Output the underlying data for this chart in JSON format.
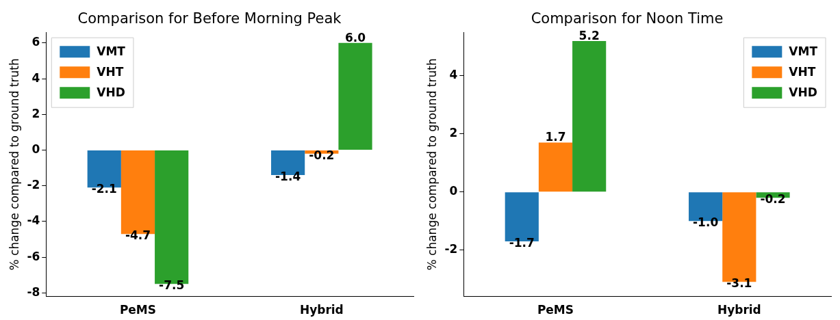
{
  "chart_data": [
    {
      "type": "bar",
      "title": "Comparison for Before Morning Peak",
      "ylabel": "% change compared to ground truth",
      "categories": [
        "PeMS",
        "Hybrid"
      ],
      "series": [
        {
          "name": "VMT",
          "color": "#1f77b4",
          "values": [
            -2.1,
            -1.4
          ],
          "value_labels": [
            "-2.1",
            "-1.4"
          ]
        },
        {
          "name": "VHT",
          "color": "#ff7f0e",
          "values": [
            -4.7,
            -0.2
          ],
          "value_labels": [
            "-4.7",
            "-0.2"
          ]
        },
        {
          "name": "VHD",
          "color": "#2ca02c",
          "values": [
            -7.5,
            6.0
          ],
          "value_labels": [
            "-7.5",
            "6.0"
          ]
        }
      ],
      "ylim": [
        -8.2,
        6.6
      ],
      "yticks": [
        -8,
        -6,
        -4,
        -2,
        0,
        2,
        4,
        6
      ],
      "legend": "top left",
      "grid": false
    },
    {
      "type": "bar",
      "title": "Comparison for Noon Time",
      "ylabel": "% change compared to ground truth",
      "categories": [
        "PeMS",
        "Hybrid"
      ],
      "series": [
        {
          "name": "VMT",
          "color": "#1f77b4",
          "values": [
            -1.7,
            -1.0
          ],
          "value_labels": [
            "-1.7",
            "-1.0"
          ]
        },
        {
          "name": "VHT",
          "color": "#ff7f0e",
          "values": [
            1.7,
            -3.1
          ],
          "value_labels": [
            "1.7",
            "-3.1"
          ]
        },
        {
          "name": "VHD",
          "color": "#2ca02c",
          "values": [
            5.2,
            -0.2
          ],
          "value_labels": [
            "5.2",
            "-0.2"
          ]
        }
      ],
      "ylim": [
        -3.6,
        5.5
      ],
      "yticks": [
        -2,
        0,
        2,
        4
      ],
      "legend": "top right",
      "grid": false
    }
  ]
}
